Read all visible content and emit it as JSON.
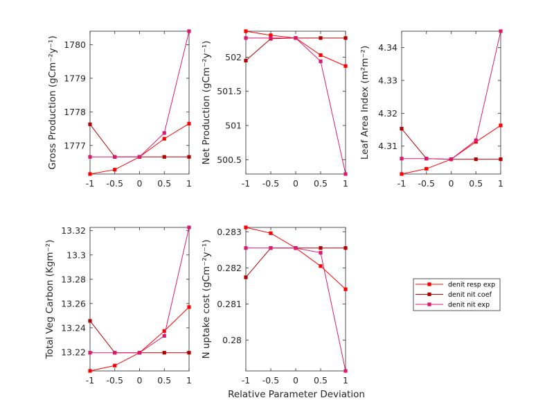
{
  "chart_data": {
    "type": "line",
    "xlabel": "Relative Parameter Deviation",
    "x": [
      -1,
      -0.5,
      0,
      0.5,
      1
    ],
    "xlim": [
      -1,
      1
    ],
    "xticks": [
      -1,
      -0.5,
      0,
      0.5,
      1
    ],
    "xtick_labels": [
      "-1",
      "-0.5",
      "0",
      "0.5",
      "1"
    ],
    "legend": {
      "placement": "right",
      "entries": [
        {
          "name": "denit resp exp",
          "color": "#ff0000"
        },
        {
          "name": "denit nit coef",
          "color": "#b20000"
        },
        {
          "name": "denit nit exp",
          "color": "#d91a6e"
        }
      ]
    },
    "panels": [
      {
        "ylabel": "Gross Production (gCm⁻²y⁻¹)",
        "ylim": [
          1776.15,
          1780.4
        ],
        "yticks": [
          1777,
          1778,
          1779,
          1780
        ],
        "ytick_labels": [
          "1777",
          "1778",
          "1779",
          "1780"
        ],
        "series": [
          {
            "name": "denit resp exp",
            "values": [
              1776.15,
              1776.28,
              1776.66,
              1777.2,
              1777.65
            ]
          },
          {
            "name": "denit nit coef",
            "values": [
              1777.63,
              1776.66,
              1776.66,
              1776.66,
              1776.66
            ]
          },
          {
            "name": "denit nit exp",
            "values": [
              1776.66,
              1776.66,
              1776.66,
              1777.37,
              1780.4
            ]
          }
        ]
      },
      {
        "ylabel": "Net Production (gCm⁻²y⁻¹)",
        "ylim": [
          500.29,
          502.38
        ],
        "yticks": [
          500.5,
          501,
          501.5,
          502
        ],
        "ytick_labels": [
          "500.5",
          "501",
          "501.5",
          "502"
        ],
        "series": [
          {
            "name": "denit resp exp",
            "values": [
              502.38,
              502.32,
              502.28,
              502.03,
              501.87
            ]
          },
          {
            "name": "denit nit coef",
            "values": [
              501.95,
              502.27,
              502.28,
              502.28,
              502.28
            ]
          },
          {
            "name": "denit nit exp",
            "values": [
              502.28,
              502.28,
              502.28,
              501.94,
              500.29
            ]
          }
        ]
      },
      {
        "ylabel": "Leaf Area Index (m²m⁻²)",
        "ylim": [
          4.3015,
          4.345
        ],
        "yticks": [
          4.31,
          4.32,
          4.33,
          4.34
        ],
        "ytick_labels": [
          "4.31",
          "4.32",
          "4.33",
          "4.34"
        ],
        "series": [
          {
            "name": "denit resp exp",
            "values": [
              4.3015,
              4.3031,
              4.306,
              4.3113,
              4.3163
            ]
          },
          {
            "name": "denit nit coef",
            "values": [
              4.3153,
              4.3062,
              4.306,
              4.306,
              4.306
            ]
          },
          {
            "name": "denit nit exp",
            "values": [
              4.3062,
              4.3062,
              4.306,
              4.3118,
              4.345
            ]
          }
        ]
      },
      {
        "ylabel": "Total Veg Carbon (Kgm⁻²)",
        "ylim": [
          13.2045,
          13.3227
        ],
        "yticks": [
          13.22,
          13.24,
          13.26,
          13.28,
          13.3,
          13.32
        ],
        "ytick_labels": [
          "13.22",
          "13.24",
          "13.26",
          "13.28",
          "13.3",
          "13.32"
        ],
        "series": [
          {
            "name": "denit resp exp",
            "values": [
              13.2045,
              13.2089,
              13.2195,
              13.2374,
              13.2571
            ]
          },
          {
            "name": "denit nit coef",
            "values": [
              13.2457,
              13.2195,
              13.2195,
              13.2195,
              13.2195
            ]
          },
          {
            "name": "denit nit exp",
            "values": [
              13.2195,
              13.2195,
              13.2195,
              13.2334,
              13.3227
            ]
          }
        ]
      },
      {
        "ylabel": "N uptake cost (gCm⁻²y⁻¹)",
        "ylim": [
          0.27915,
          0.28312
        ],
        "yticks": [
          0.28,
          0.281,
          0.282,
          0.283
        ],
        "ytick_labels": [
          "0.28",
          "0.281",
          "0.282",
          "0.283"
        ],
        "series": [
          {
            "name": "denit resp exp",
            "values": [
              0.28312,
              0.28296,
              0.28255,
              0.28205,
              0.28141
            ]
          },
          {
            "name": "denit nit coef",
            "values": [
              0.28174,
              0.28255,
              0.28255,
              0.28255,
              0.28255
            ]
          },
          {
            "name": "denit nit exp",
            "values": [
              0.28255,
              0.28255,
              0.28255,
              0.28242,
              0.27915
            ]
          }
        ]
      }
    ]
  }
}
